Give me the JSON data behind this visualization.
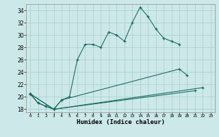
{
  "xlabel": "Humidex (Indice chaleur)",
  "bg_color": "#cce8e8",
  "grid_color": "#a8cccc",
  "line_color": "#1a6b60",
  "xlim": [
    -0.5,
    23.5
  ],
  "ylim": [
    17.5,
    35.0
  ],
  "xticks": [
    0,
    1,
    2,
    3,
    4,
    5,
    6,
    7,
    8,
    9,
    10,
    11,
    12,
    13,
    14,
    15,
    16,
    17,
    18,
    19,
    20,
    21,
    22,
    23
  ],
  "yticks": [
    18,
    20,
    22,
    24,
    26,
    28,
    30,
    32,
    34
  ],
  "series": [
    {
      "x": [
        0,
        1,
        2,
        3,
        4,
        5,
        6,
        7,
        8,
        9,
        10,
        11,
        12,
        13,
        14,
        15,
        16,
        17,
        18,
        19
      ],
      "y": [
        20.5,
        19.0,
        18.5,
        18.0,
        19.5,
        20.0,
        26.0,
        28.5,
        28.5,
        28.0,
        30.5,
        30.0,
        29.0,
        32.0,
        34.5,
        33.0,
        31.0,
        29.5,
        29.0,
        28.5
      ]
    },
    {
      "x": [
        0,
        1,
        2,
        3,
        4,
        19,
        20
      ],
      "y": [
        20.5,
        19.0,
        18.5,
        18.0,
        19.5,
        24.5,
        23.5
      ]
    },
    {
      "x": [
        0,
        3,
        21
      ],
      "y": [
        20.5,
        18.0,
        21.0
      ]
    },
    {
      "x": [
        0,
        3,
        22
      ],
      "y": [
        20.5,
        18.0,
        21.5
      ]
    }
  ]
}
